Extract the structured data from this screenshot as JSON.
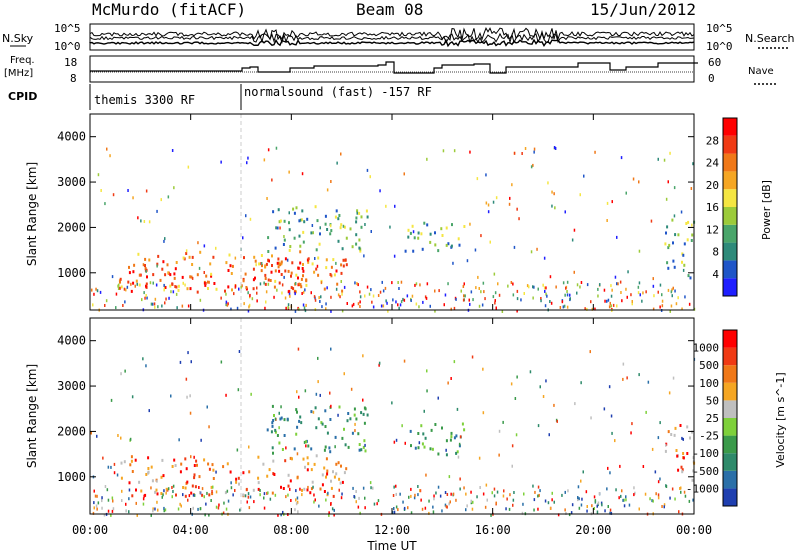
{
  "header": {
    "station": "McMurdo (fitACF)",
    "beam": "Beam 08",
    "date": "15/Jun/2012"
  },
  "top_panels": {
    "nsky_label": "N.Sky",
    "nsearch_label": "N.Search",
    "tick_1e5": "10^5",
    "tick_1e0": "10^0",
    "freq_label": "Freq.",
    "freq_unit": "[MHz]",
    "freq_ticks": [
      "18",
      "8"
    ],
    "nave_label": "Nave",
    "nave_ticks": [
      "60",
      "0"
    ],
    "cpid_label": "CPID",
    "cpid_segments": [
      {
        "label": "themis 3300 RF",
        "start_hour": 0
      },
      {
        "label": "normalsound (fast) -157 RF",
        "start_hour": 6
      }
    ]
  },
  "chart_data": [
    {
      "type": "heatmap",
      "title": "",
      "xlabel": "Time UT",
      "ylabel": "Slant Range [km]",
      "x_ticks": [
        "00:00",
        "04:00",
        "08:00",
        "12:00",
        "16:00",
        "20:00",
        "00:00"
      ],
      "y_ticks": [
        "1000",
        "2000",
        "3000",
        "4000"
      ],
      "xlim_hours": [
        0,
        24
      ],
      "ylim_km": [
        180,
        4500
      ],
      "colorbar": {
        "label": "Power [dB]",
        "ticks": [
          "4",
          "8",
          "12",
          "16",
          "20",
          "24",
          "28"
        ],
        "colors": [
          "#1f1fff",
          "#1f55c8",
          "#2e8a7a",
          "#4aa56a",
          "#9ccb3a",
          "#f5e642",
          "#f5a623",
          "#f07818",
          "#f03a14",
          "#ff0000"
        ]
      },
      "echo_regions": [
        {
          "t0": 1.1,
          "t1": 10.2,
          "r0": 600,
          "r1": 1500,
          "value": "high"
        },
        {
          "t0": 1.5,
          "t1": 3.0,
          "r0": 700,
          "r1": 1300,
          "value": "very-high"
        },
        {
          "t0": 6.0,
          "t1": 8.5,
          "r0": 600,
          "r1": 1400,
          "value": "very-high"
        },
        {
          "t0": 7.0,
          "t1": 11.0,
          "r0": 1500,
          "r1": 2500,
          "value": "medium"
        },
        {
          "t0": 12.5,
          "t1": 15.0,
          "r0": 1500,
          "r1": 2200,
          "value": "medium"
        },
        {
          "t0": 22.8,
          "t1": 24.0,
          "r0": 900,
          "r1": 2200,
          "value": "medium"
        }
      ]
    },
    {
      "type": "heatmap",
      "title": "",
      "xlabel": "Time UT",
      "ylabel": "Slant Range [km]",
      "x_ticks": [
        "00:00",
        "04:00",
        "08:00",
        "12:00",
        "16:00",
        "20:00",
        "00:00"
      ],
      "y_ticks": [
        "1000",
        "2000",
        "3000",
        "4000"
      ],
      "xlim_hours": [
        0,
        24
      ],
      "ylim_km": [
        180,
        4500
      ],
      "colorbar": {
        "label": "Velocity [m s^-1]",
        "ticks": [
          "1000",
          "500",
          "100",
          "50",
          "25",
          "-25",
          "-100",
          "-500",
          "-1000"
        ],
        "colors": [
          "#1f3fb0",
          "#2a6fa8",
          "#2e8a6a",
          "#3a9a4a",
          "#7ed03a",
          "#bfbfbf",
          "#f5a623",
          "#f07818",
          "#f03a14",
          "#ff0000"
        ]
      },
      "echo_regions": [
        {
          "t0": 1.1,
          "t1": 10.2,
          "r0": 600,
          "r1": 1500,
          "value": "toward"
        },
        {
          "t0": 7.0,
          "t1": 11.0,
          "r0": 1500,
          "r1": 2600,
          "value": "away"
        },
        {
          "t0": 12.5,
          "t1": 15.0,
          "r0": 1500,
          "r1": 2200,
          "value": "away"
        },
        {
          "t0": 22.8,
          "t1": 24.0,
          "r0": 900,
          "r1": 2200,
          "value": "toward"
        }
      ]
    }
  ]
}
